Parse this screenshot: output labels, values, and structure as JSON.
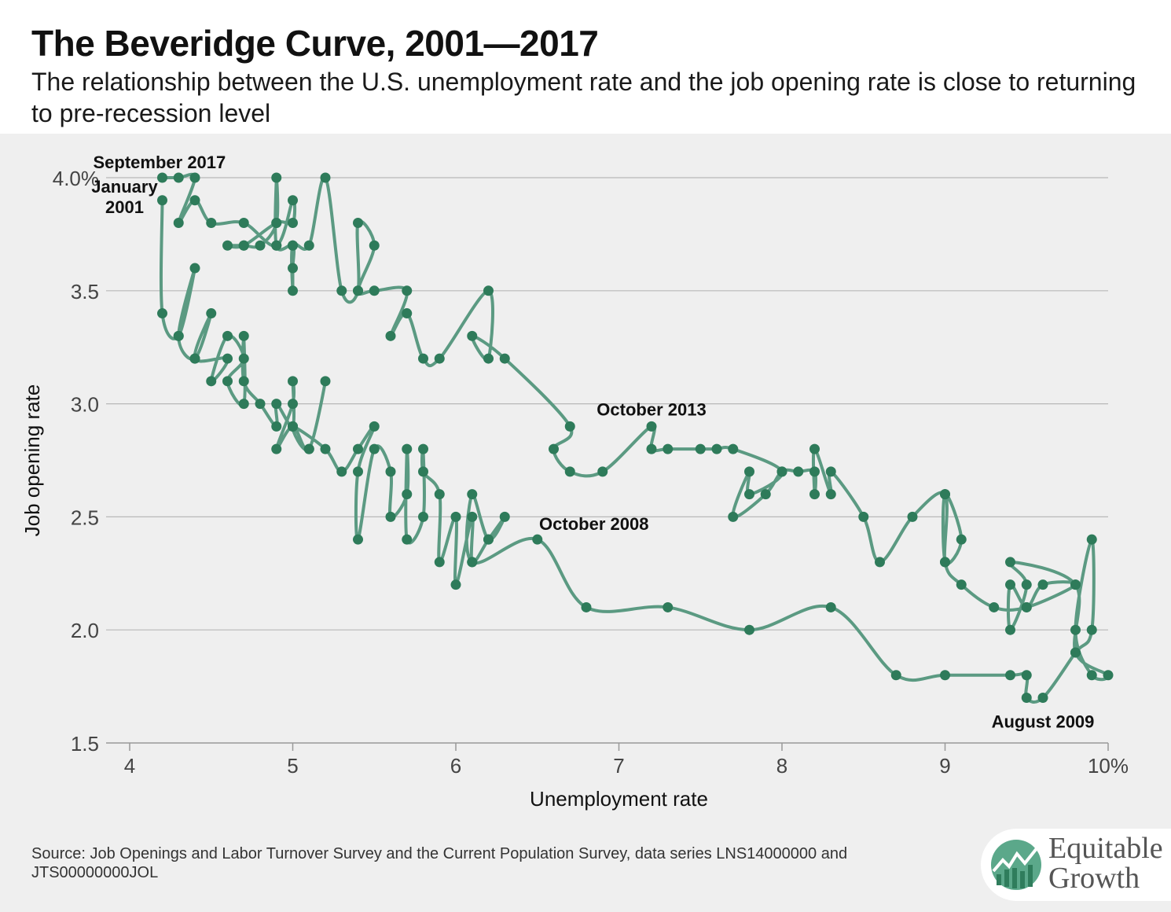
{
  "title": "The Beveridge Curve, 2001—2017",
  "subtitle": "The relationship between the U.S. unemployment rate and the job opening rate is close to returning to pre-recession level",
  "source": "Source: Job Openings and Labor Turnover Survey and the Current Population Survey, data series LNS14000000 and JTS00000000JOL",
  "logo": {
    "line1": "Equitable",
    "line2": "Growth",
    "icon": "equitable-growth-chart-icon"
  },
  "colors": {
    "line": "#5b9a82",
    "point": "#2e7b5a",
    "grid": "#b8b8b8",
    "background": "#efefef"
  },
  "chart_data": {
    "type": "line",
    "xlabel": "Unemployment rate",
    "ylabel": "Job opening rate",
    "xlim": [
      4,
      10
    ],
    "ylim": [
      1.5,
      4.0
    ],
    "x_ticks": [
      "4",
      "5",
      "6",
      "7",
      "8",
      "9",
      "10%"
    ],
    "x_tick_values": [
      4,
      5,
      6,
      7,
      8,
      9,
      10
    ],
    "y_ticks": [
      "1.5",
      "2.0",
      "2.5",
      "3.0",
      "3.5",
      "4.0%"
    ],
    "y_tick_values": [
      1.5,
      2.0,
      2.5,
      3.0,
      3.5,
      4.0
    ],
    "grid": "horizontal",
    "annotations": [
      {
        "label": "September 2017",
        "x": 4.2,
        "y": 4.0
      },
      {
        "label": "January 2001",
        "x": 4.2,
        "y": 3.9
      },
      {
        "label": "October 2013",
        "x": 7.2,
        "y": 2.9
      },
      {
        "label": "October 2008",
        "x": 6.5,
        "y": 2.4
      },
      {
        "label": "August 2009",
        "x": 9.6,
        "y": 1.7
      }
    ],
    "series": [
      {
        "points": [
          [
            4.2,
            3.9
          ],
          [
            4.2,
            3.4
          ],
          [
            4.3,
            3.3
          ],
          [
            4.4,
            3.6
          ],
          [
            4.3,
            3.3
          ],
          [
            4.4,
            3.2
          ],
          [
            4.5,
            3.4
          ],
          [
            4.4,
            3.2
          ],
          [
            4.6,
            3.2
          ],
          [
            4.5,
            3.1
          ],
          [
            4.6,
            3.3
          ],
          [
            4.7,
            3.2
          ],
          [
            4.6,
            3.1
          ],
          [
            4.7,
            3.0
          ],
          [
            4.7,
            3.3
          ],
          [
            4.7,
            3.1
          ],
          [
            4.8,
            3.0
          ],
          [
            4.9,
            2.9
          ],
          [
            4.9,
            3.0
          ],
          [
            5.0,
            2.9
          ],
          [
            5.0,
            3.1
          ],
          [
            5.0,
            3.0
          ],
          [
            4.9,
            2.8
          ],
          [
            5.0,
            2.9
          ],
          [
            5.1,
            2.8
          ],
          [
            5.2,
            3.1
          ],
          [
            5.1,
            2.8
          ],
          [
            5.0,
            2.9
          ],
          [
            5.2,
            2.8
          ],
          [
            5.3,
            2.7
          ],
          [
            5.4,
            2.8
          ],
          [
            5.5,
            2.9
          ],
          [
            5.4,
            2.7
          ],
          [
            5.4,
            2.4
          ],
          [
            5.5,
            2.8
          ],
          [
            5.6,
            2.7
          ],
          [
            5.6,
            2.5
          ],
          [
            5.7,
            2.6
          ],
          [
            5.7,
            2.8
          ],
          [
            5.7,
            2.4
          ],
          [
            5.8,
            2.5
          ],
          [
            5.8,
            2.8
          ],
          [
            5.8,
            2.7
          ],
          [
            5.9,
            2.6
          ],
          [
            5.9,
            2.3
          ],
          [
            6.0,
            2.5
          ],
          [
            6.0,
            2.2
          ],
          [
            6.1,
            2.5
          ],
          [
            6.1,
            2.3
          ],
          [
            6.2,
            2.4
          ],
          [
            6.3,
            2.5
          ],
          [
            6.2,
            2.4
          ],
          [
            6.1,
            2.6
          ],
          [
            6.1,
            2.3
          ],
          [
            6.5,
            2.4
          ],
          [
            6.8,
            2.1
          ],
          [
            7.3,
            2.1
          ],
          [
            7.8,
            2.0
          ],
          [
            8.3,
            2.1
          ],
          [
            8.7,
            1.8
          ],
          [
            9.0,
            1.8
          ],
          [
            9.4,
            1.8
          ],
          [
            9.5,
            1.8
          ],
          [
            9.5,
            1.7
          ],
          [
            9.6,
            1.7
          ],
          [
            9.8,
            1.9
          ],
          [
            9.9,
            2.0
          ],
          [
            9.9,
            2.4
          ],
          [
            9.8,
            2.0
          ],
          [
            9.9,
            1.8
          ],
          [
            10.0,
            1.8
          ],
          [
            9.8,
            1.9
          ],
          [
            9.8,
            2.2
          ],
          [
            9.4,
            2.3
          ],
          [
            9.5,
            2.2
          ],
          [
            9.4,
            2.0
          ],
          [
            9.4,
            2.2
          ],
          [
            9.5,
            2.1
          ],
          [
            9.6,
            2.2
          ],
          [
            9.8,
            2.2
          ],
          [
            9.5,
            2.1
          ],
          [
            9.3,
            2.1
          ],
          [
            9.1,
            2.2
          ],
          [
            9.0,
            2.3
          ],
          [
            9.0,
            2.6
          ],
          [
            9.1,
            2.4
          ],
          [
            9.0,
            2.3
          ],
          [
            9.0,
            2.6
          ],
          [
            8.8,
            2.5
          ],
          [
            8.6,
            2.3
          ],
          [
            8.5,
            2.5
          ],
          [
            8.3,
            2.7
          ],
          [
            8.3,
            2.6
          ],
          [
            8.2,
            2.8
          ],
          [
            8.2,
            2.6
          ],
          [
            8.2,
            2.7
          ],
          [
            8.1,
            2.7
          ],
          [
            8.0,
            2.7
          ],
          [
            7.9,
            2.6
          ],
          [
            7.7,
            2.5
          ],
          [
            7.8,
            2.7
          ],
          [
            7.8,
            2.6
          ],
          [
            8.0,
            2.7
          ],
          [
            7.7,
            2.8
          ],
          [
            7.6,
            2.8
          ],
          [
            7.5,
            2.8
          ],
          [
            7.3,
            2.8
          ],
          [
            7.2,
            2.8
          ],
          [
            7.2,
            2.9
          ],
          [
            6.9,
            2.7
          ],
          [
            6.7,
            2.7
          ],
          [
            6.6,
            2.8
          ],
          [
            6.7,
            2.9
          ],
          [
            6.3,
            3.2
          ],
          [
            6.1,
            3.3
          ],
          [
            6.2,
            3.2
          ],
          [
            6.2,
            3.5
          ],
          [
            5.9,
            3.2
          ],
          [
            5.8,
            3.2
          ],
          [
            5.7,
            3.4
          ],
          [
            5.6,
            3.3
          ],
          [
            5.7,
            3.5
          ],
          [
            5.5,
            3.5
          ],
          [
            5.4,
            3.5
          ],
          [
            5.5,
            3.7
          ],
          [
            5.4,
            3.8
          ],
          [
            5.4,
            3.5
          ],
          [
            5.3,
            3.5
          ],
          [
            5.2,
            4.0
          ],
          [
            5.1,
            3.7
          ],
          [
            5.0,
            3.7
          ],
          [
            5.0,
            3.5
          ],
          [
            5.0,
            3.6
          ],
          [
            5.0,
            3.7
          ],
          [
            4.9,
            3.7
          ],
          [
            4.9,
            4.0
          ],
          [
            4.9,
            3.8
          ],
          [
            4.8,
            3.7
          ],
          [
            4.7,
            3.7
          ],
          [
            4.6,
            3.7
          ],
          [
            4.7,
            3.7
          ],
          [
            4.9,
            3.8
          ],
          [
            5.0,
            3.8
          ],
          [
            5.0,
            3.9
          ],
          [
            4.9,
            3.7
          ],
          [
            4.7,
            3.8
          ],
          [
            4.5,
            3.8
          ],
          [
            4.4,
            3.9
          ],
          [
            4.3,
            3.8
          ],
          [
            4.4,
            4.0
          ],
          [
            4.3,
            4.0
          ],
          [
            4.2,
            4.0
          ]
        ]
      }
    ]
  }
}
